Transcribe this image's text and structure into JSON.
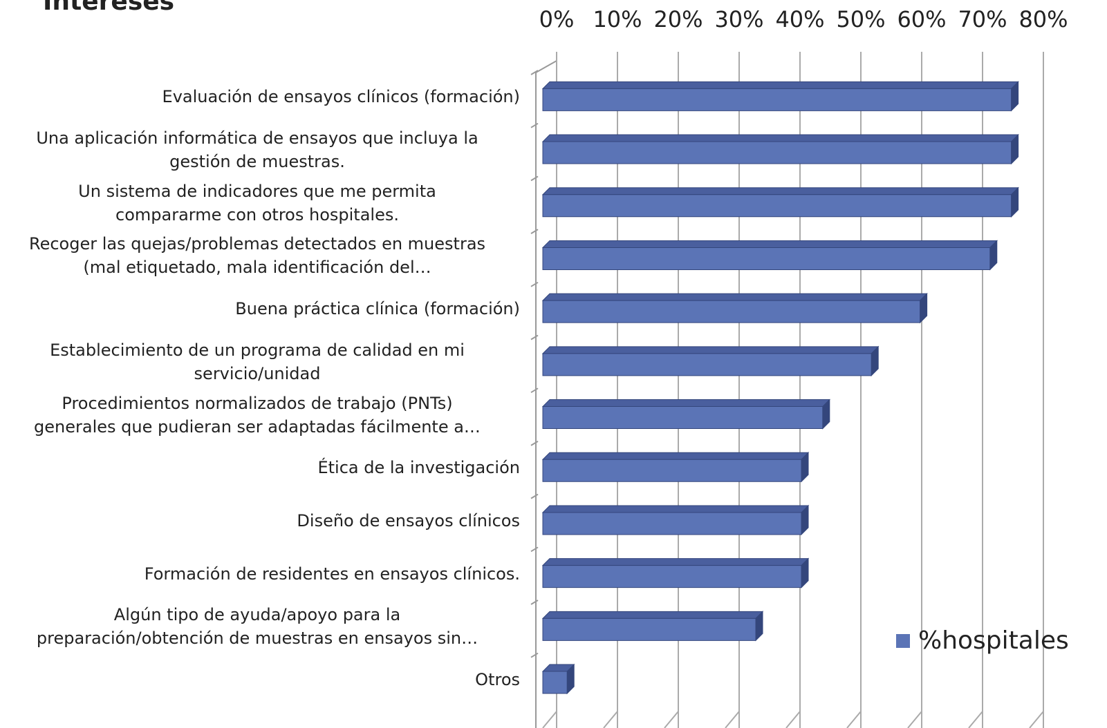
{
  "chart_data": {
    "type": "bar",
    "orientation": "horizontal",
    "title": "Intereses",
    "categories": [
      "Evaluación de ensayos clínicos (formación)",
      "Una aplicación informática de ensayos que incluya la\ngestión de muestras.",
      "Un sistema de indicadores que me permita\ncompararme con otros hospitales.",
      "Recoger las quejas/problemas detectados en muestras\n(mal etiquetado, mala identificación del…",
      "Buena práctica clínica (formación)",
      "Establecimiento de un programa de calidad en mi\nservicio/unidad",
      "Procedimientos normalizados de trabajo (PNTs)\ngenerales que pudieran ser adaptadas fácilmente a…",
      "Ética de la investigación",
      "Diseño de ensayos clínicos",
      "Formación de residentes en ensayos clínicos.",
      "Algún tipo de ayuda/apoyo para la\npreparación/obtención de muestras en ensayos sin…",
      "Otros"
    ],
    "series": [
      {
        "name": "%hospitales",
        "color": "#5b74b6",
        "values": [
          77,
          77,
          77,
          73.5,
          62,
          54,
          46,
          42.5,
          42.5,
          42.5,
          35,
          4
        ]
      }
    ],
    "xlim": [
      0,
      80
    ],
    "xticks": [
      {
        "value": 0,
        "label": "0%"
      },
      {
        "value": 10,
        "label": "10%"
      },
      {
        "value": 20,
        "label": "20%"
      },
      {
        "value": 30,
        "label": "30%"
      },
      {
        "value": 40,
        "label": "40%"
      },
      {
        "value": 50,
        "label": "50%"
      },
      {
        "value": 60,
        "label": "60%"
      },
      {
        "value": 70,
        "label": "70%"
      },
      {
        "value": 80,
        "label": "80%"
      }
    ],
    "grid": true,
    "legend": "right"
  }
}
